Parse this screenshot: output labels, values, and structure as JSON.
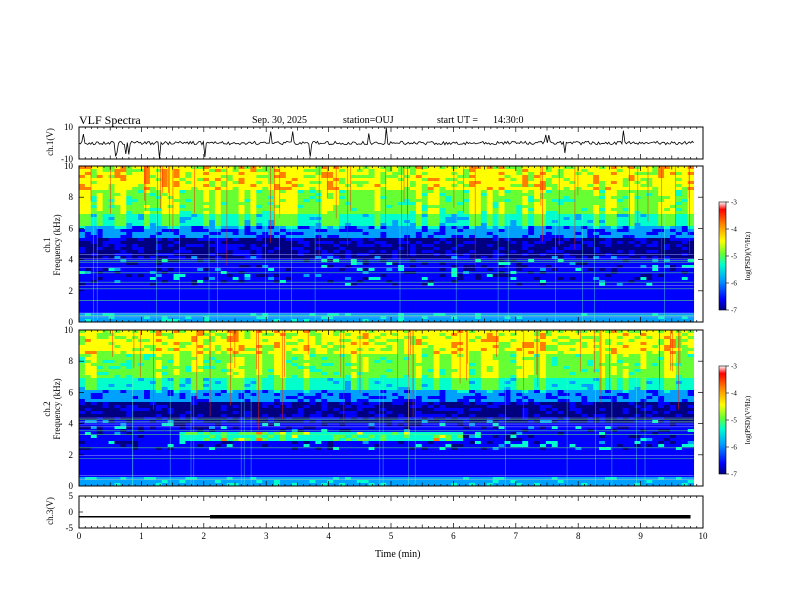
{
  "header": {
    "title": "VLF Spectra",
    "date": "Sep. 30, 2025",
    "station": "station=OUJ",
    "start_label": "start UT =",
    "start_time": "14:30:0"
  },
  "colors": {
    "trace": "#000000",
    "colormap": [
      "#000080",
      "#0000ff",
      "#00a0ff",
      "#00ffcc",
      "#66ff33",
      "#ffff00",
      "#ff8000",
      "#ff0000",
      "#ffffff"
    ]
  },
  "chart_data": [
    {
      "type": "line",
      "panel": "ch1-waveform",
      "ylabel": "ch.1(V)",
      "ylim": [
        -10,
        10
      ],
      "yticks": [
        "10",
        "-10"
      ],
      "baseline": 0
    },
    {
      "type": "heatmap",
      "panel": "ch1-spectrogram",
      "ylabel": "ch.1\nFrequency (kHz)",
      "ylabel_line1": "ch.1",
      "ylabel_line2": "Frequency (kHz)",
      "ylim": [
        0,
        10
      ],
      "yticks": [
        "0",
        "2",
        "4",
        "6",
        "8",
        "10"
      ],
      "colorbar": {
        "label": "log(PSD)(V²/Hz)",
        "range": [
          -7,
          -3
        ],
        "ticks": [
          "-3",
          "-4",
          "-5",
          "-6",
          "-7"
        ]
      }
    },
    {
      "type": "heatmap",
      "panel": "ch2-spectrogram",
      "ylabel_line1": "ch.2",
      "ylabel_line2": "Frequency (kHz)",
      "ylim": [
        0,
        10
      ],
      "yticks": [
        "0",
        "2",
        "4",
        "6",
        "8",
        "10"
      ],
      "band_feature": {
        "freq_khz": 3.3,
        "t_start_min": 1.6,
        "t_end_min": 6.2
      },
      "colorbar": {
        "label": "log(PSD)(V²/Hz)",
        "range": [
          -7,
          -3
        ],
        "ticks": [
          "-3",
          "-4",
          "-5",
          "-6",
          "-7"
        ]
      }
    },
    {
      "type": "line",
      "panel": "ch3-waveform",
      "ylabel": "ch.3(V)",
      "ylim": [
        -5,
        5
      ],
      "yticks": [
        "5",
        "0",
        "-5"
      ],
      "segments": [
        {
          "t_start_min": 0.0,
          "t_end_min": 2.1,
          "value": -1.5
        },
        {
          "t_start_min": 2.1,
          "t_end_min": 9.8,
          "value": -1.5
        }
      ]
    }
  ],
  "xaxis": {
    "label": "Time (min)",
    "range": [
      0,
      10
    ],
    "ticks": [
      "0",
      "1",
      "2",
      "3",
      "4",
      "5",
      "6",
      "7",
      "8",
      "9",
      "10"
    ]
  }
}
